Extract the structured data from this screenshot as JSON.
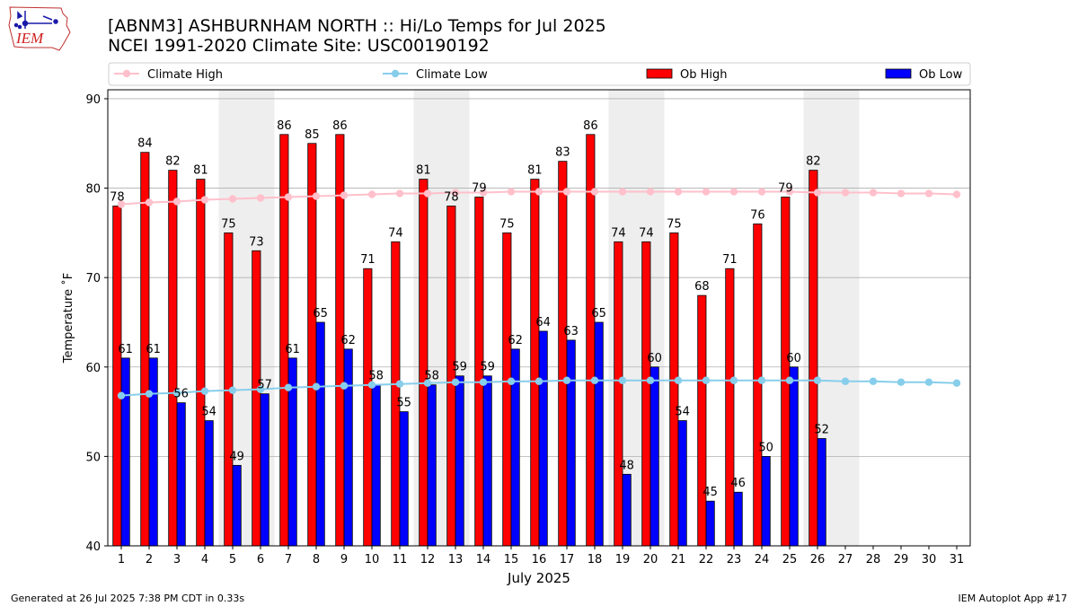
{
  "header": {
    "title_line1": "[ABNM3] ASHBURNHAM NORTH :: Hi/Lo Temps for Jul 2025",
    "title_line2": "NCEI 1991-2020 Climate Site: USC00190192",
    "logo_text": "IEM"
  },
  "footer": {
    "generated": "Generated at 26 Jul 2025 7:38 PM CDT in 0.33s",
    "app": "IEM Autoplot App #17"
  },
  "colors": {
    "ob_high": "#ff0000",
    "ob_low": "#0000ff",
    "climate_high": "#ffc0cb",
    "climate_low": "#87ceeb",
    "weekend_shade": "#eeeeee"
  },
  "chart_data": {
    "type": "bar",
    "title": "[ABNM3] ASHBURNHAM NORTH :: Hi/Lo Temps for Jul 2025",
    "subtitle": "NCEI 1991-2020 Climate Site: USC00190192",
    "xlabel": "July 2025",
    "ylabel": "Temperature $^\\circ$F",
    "ylabel_display": "Temperature ˚F",
    "ylim": [
      40,
      91
    ],
    "yticks": [
      40,
      50,
      60,
      70,
      80,
      90
    ],
    "grid": "y",
    "legend_position": "top",
    "categories": [
      "1",
      "2",
      "3",
      "4",
      "5",
      "6",
      "7",
      "8",
      "9",
      "10",
      "11",
      "12",
      "13",
      "14",
      "15",
      "16",
      "17",
      "18",
      "19",
      "20",
      "21",
      "22",
      "23",
      "24",
      "25",
      "26",
      "27",
      "28",
      "29",
      "30",
      "31"
    ],
    "shaded_days": [
      [
        5,
        6
      ],
      [
        12,
        13
      ],
      [
        19,
        20
      ],
      [
        26,
        27
      ]
    ],
    "series": [
      {
        "name": "Ob High",
        "kind": "bar",
        "values": [
          78,
          84,
          82,
          81,
          75,
          73,
          86,
          85,
          86,
          71,
          74,
          81,
          78,
          79,
          75,
          81,
          83,
          86,
          74,
          74,
          75,
          68,
          71,
          76,
          79,
          82,
          null,
          null,
          null,
          null,
          null
        ]
      },
      {
        "name": "Ob Low",
        "kind": "bar",
        "values": [
          61,
          61,
          56,
          54,
          49,
          57,
          61,
          65,
          62,
          58,
          55,
          58,
          59,
          59,
          62,
          64,
          63,
          65,
          48,
          60,
          54,
          45,
          46,
          50,
          60,
          52,
          null,
          null,
          null,
          null,
          null
        ]
      },
      {
        "name": "Climate High",
        "kind": "line",
        "values": [
          78.2,
          78.4,
          78.5,
          78.7,
          78.8,
          78.9,
          79.0,
          79.1,
          79.2,
          79.3,
          79.4,
          79.4,
          79.5,
          79.5,
          79.6,
          79.6,
          79.6,
          79.6,
          79.6,
          79.6,
          79.6,
          79.6,
          79.6,
          79.6,
          79.6,
          79.5,
          79.5,
          79.5,
          79.4,
          79.4,
          79.3
        ]
      },
      {
        "name": "Climate Low",
        "kind": "line",
        "values": [
          56.8,
          57.0,
          57.1,
          57.3,
          57.4,
          57.5,
          57.7,
          57.8,
          57.9,
          58.0,
          58.1,
          58.2,
          58.3,
          58.3,
          58.4,
          58.4,
          58.5,
          58.5,
          58.5,
          58.5,
          58.5,
          58.5,
          58.5,
          58.5,
          58.5,
          58.5,
          58.4,
          58.4,
          58.3,
          58.3,
          58.2
        ]
      }
    ]
  }
}
